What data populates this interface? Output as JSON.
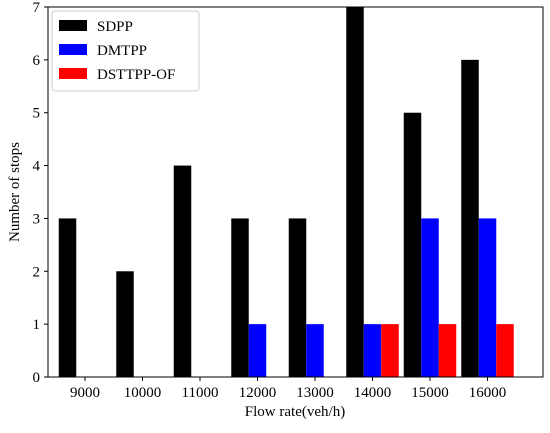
{
  "chart_data": {
    "type": "bar",
    "title": "",
    "xlabel": "Flow rate(veh/h)",
    "ylabel": "Number of stops",
    "categories": [
      "9000",
      "10000",
      "11000",
      "12000",
      "13000",
      "14000",
      "15000",
      "16000"
    ],
    "series": [
      {
        "name": "SDPP",
        "color": "#000000",
        "values": [
          3,
          2,
          4,
          3,
          3,
          7,
          5,
          6
        ]
      },
      {
        "name": "DMTPP",
        "color": "#0000ff",
        "values": [
          0,
          0,
          0,
          1,
          1,
          1,
          3,
          3
        ]
      },
      {
        "name": "DSTTPP-OF",
        "color": "#ff0000",
        "values": [
          0,
          0,
          0,
          0,
          0,
          1,
          1,
          1
        ]
      }
    ],
    "ylim": [
      0,
      7
    ],
    "yticks": [
      0,
      1,
      2,
      3,
      4,
      5,
      6,
      7
    ],
    "grid": false,
    "legend_position": "top-left"
  }
}
